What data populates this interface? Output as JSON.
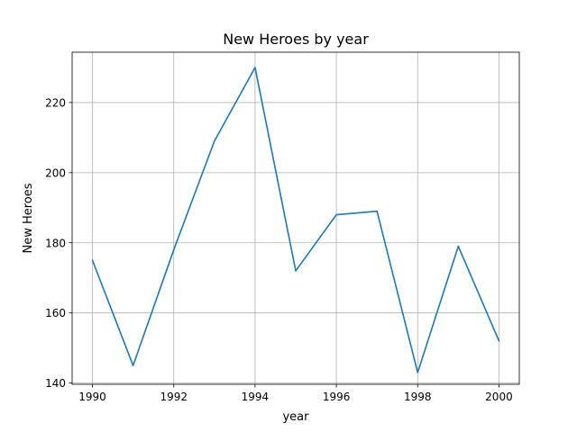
{
  "chart_data": {
    "type": "line",
    "title": "New Heroes by year",
    "xlabel": "year",
    "ylabel": "New Heroes",
    "x": [
      1990,
      1991,
      1992,
      1993,
      1994,
      1995,
      1996,
      1997,
      1998,
      1999,
      2000
    ],
    "series": [
      {
        "values": [
          175,
          145,
          178,
          209,
          230,
          172,
          188,
          189,
          143,
          179,
          152
        ],
        "color": "#1f77b4"
      }
    ],
    "xlim": [
      1989.5,
      2000.5
    ],
    "ylim": [
      139.65,
      234.35
    ],
    "xticks": [
      1990,
      1992,
      1994,
      1996,
      1998,
      2000
    ],
    "yticks": [
      140,
      160,
      180,
      200,
      220
    ],
    "grid": true,
    "legend": "none"
  }
}
